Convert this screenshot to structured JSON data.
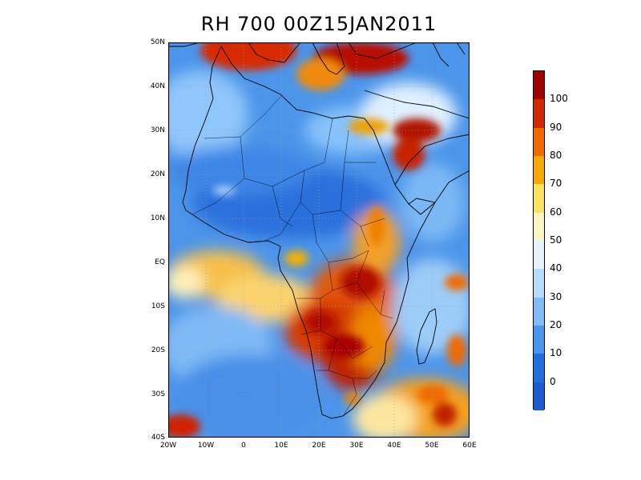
{
  "title": "RH 700 00Z15JAN2011",
  "map": {
    "lon_range": [
      -20,
      60
    ],
    "lat_range": [
      -40,
      50
    ],
    "lat_ticks": [
      {
        "value": 50,
        "label": "50N"
      },
      {
        "value": 40,
        "label": "40N"
      },
      {
        "value": 30,
        "label": "30N"
      },
      {
        "value": 20,
        "label": "20N"
      },
      {
        "value": 10,
        "label": "10N"
      },
      {
        "value": 0,
        "label": "EQ"
      },
      {
        "value": -10,
        "label": "10S"
      },
      {
        "value": -20,
        "label": "20S"
      },
      {
        "value": -30,
        "label": "30S"
      },
      {
        "value": -40,
        "label": "40S"
      }
    ],
    "lon_ticks": [
      {
        "value": -20,
        "label": "20W"
      },
      {
        "value": -10,
        "label": "10W"
      },
      {
        "value": 0,
        "label": "0"
      },
      {
        "value": 10,
        "label": "10E"
      },
      {
        "value": 20,
        "label": "20E"
      },
      {
        "value": 30,
        "label": "30E"
      },
      {
        "value": 40,
        "label": "40E"
      },
      {
        "value": 50,
        "label": "50E"
      },
      {
        "value": 60,
        "label": "60E"
      }
    ],
    "grid": "dotted"
  },
  "colorbar": {
    "orientation": "vertical",
    "placement": "right",
    "labels": [
      "100",
      "90",
      "80",
      "70",
      "60",
      "50",
      "40",
      "30",
      "20",
      "10",
      "0"
    ],
    "colors_top_to_bottom": [
      "#a00000",
      "#d22a00",
      "#f06a00",
      "#f7a900",
      "#fbe25e",
      "#fdf6c2",
      "#e6f4ff",
      "#b6dcff",
      "#7fbcf8",
      "#4896ee",
      "#1f6fe0",
      "#1f5bd0"
    ]
  }
}
